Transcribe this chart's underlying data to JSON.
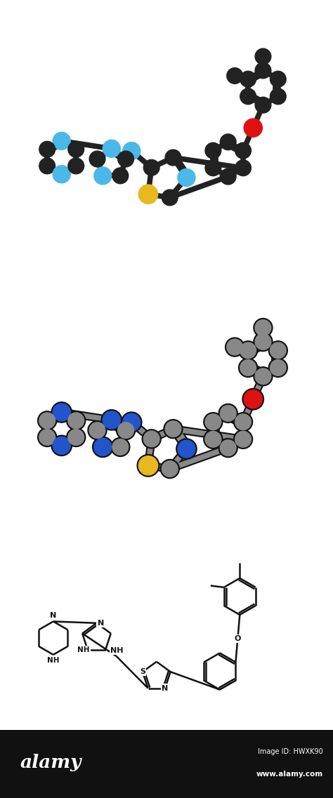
{
  "footer_bg": "#111111",
  "footer_text_alamy": "alamy",
  "footer_text_id": "Image ID: HWXK90",
  "footer_text_url": "www.alamy.com",
  "color_C1": "#222222",
  "color_CG": "#888888",
  "color_N_blue": "#4ab8e8",
  "color_N_blue2": "#2255cc",
  "color_O": "#dd1111",
  "color_S": "#e8b820",
  "color_black": "#111111"
}
